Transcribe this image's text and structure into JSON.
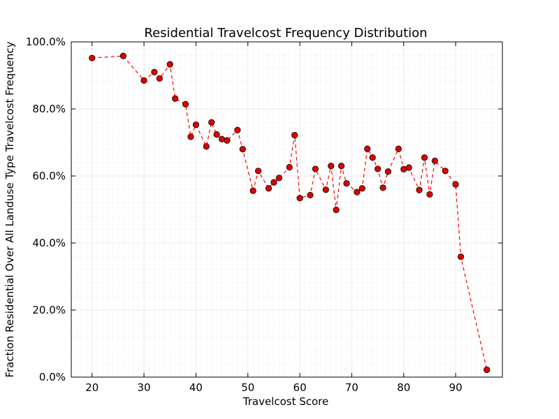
{
  "chart_data": {
    "type": "line",
    "title": "Residential Travelcost Frequency Distribution",
    "xlabel": "Travelcost Score",
    "ylabel": "Fraction Residential Over All Landuse Type Travelcost Frequency",
    "xlim": [
      16,
      99
    ],
    "ylim": [
      0,
      100
    ],
    "x_ticks": [
      20,
      30,
      40,
      50,
      60,
      70,
      80,
      90
    ],
    "y_ticks": [
      0,
      20,
      40,
      60,
      80,
      100
    ],
    "y_tick_labels": [
      "0.0%",
      "20.0%",
      "40.0%",
      "60.0%",
      "80.0%",
      "100.0%"
    ],
    "grid": true,
    "line_style": "dashed",
    "marker": "circle",
    "colors": {
      "line": "#ff0000",
      "marker_fill": "#dd0000",
      "marker_edge": "#000000",
      "grid": "#b0b0b0"
    },
    "series": [
      {
        "x": [
          20,
          26,
          30,
          32,
          33,
          35,
          36,
          38,
          39,
          40,
          42,
          43,
          44,
          45,
          46,
          48,
          49,
          51,
          52,
          54,
          55,
          56,
          58,
          59,
          60,
          62,
          63,
          65,
          66,
          67,
          68,
          69,
          71,
          72,
          73,
          74,
          75,
          76,
          77,
          79,
          80,
          81,
          83,
          84,
          85,
          86,
          88,
          90,
          91,
          96
        ],
        "y": [
          95.2,
          95.8,
          88.5,
          91.0,
          89.1,
          93.3,
          83.1,
          81.4,
          71.7,
          75.3,
          68.8,
          76.0,
          72.4,
          71.0,
          70.6,
          73.7,
          68.0,
          55.6,
          61.5,
          56.3,
          58.1,
          59.4,
          62.6,
          72.2,
          53.4,
          54.3,
          62.1,
          55.9,
          63.0,
          49.9,
          63.0,
          57.8,
          55.2,
          56.3,
          68.1,
          65.5,
          62.1,
          56.5,
          61.3,
          68.1,
          62.0,
          62.5,
          55.8,
          65.5,
          54.5,
          64.5,
          61.5,
          57.5,
          35.9,
          2.2
        ]
      }
    ]
  }
}
